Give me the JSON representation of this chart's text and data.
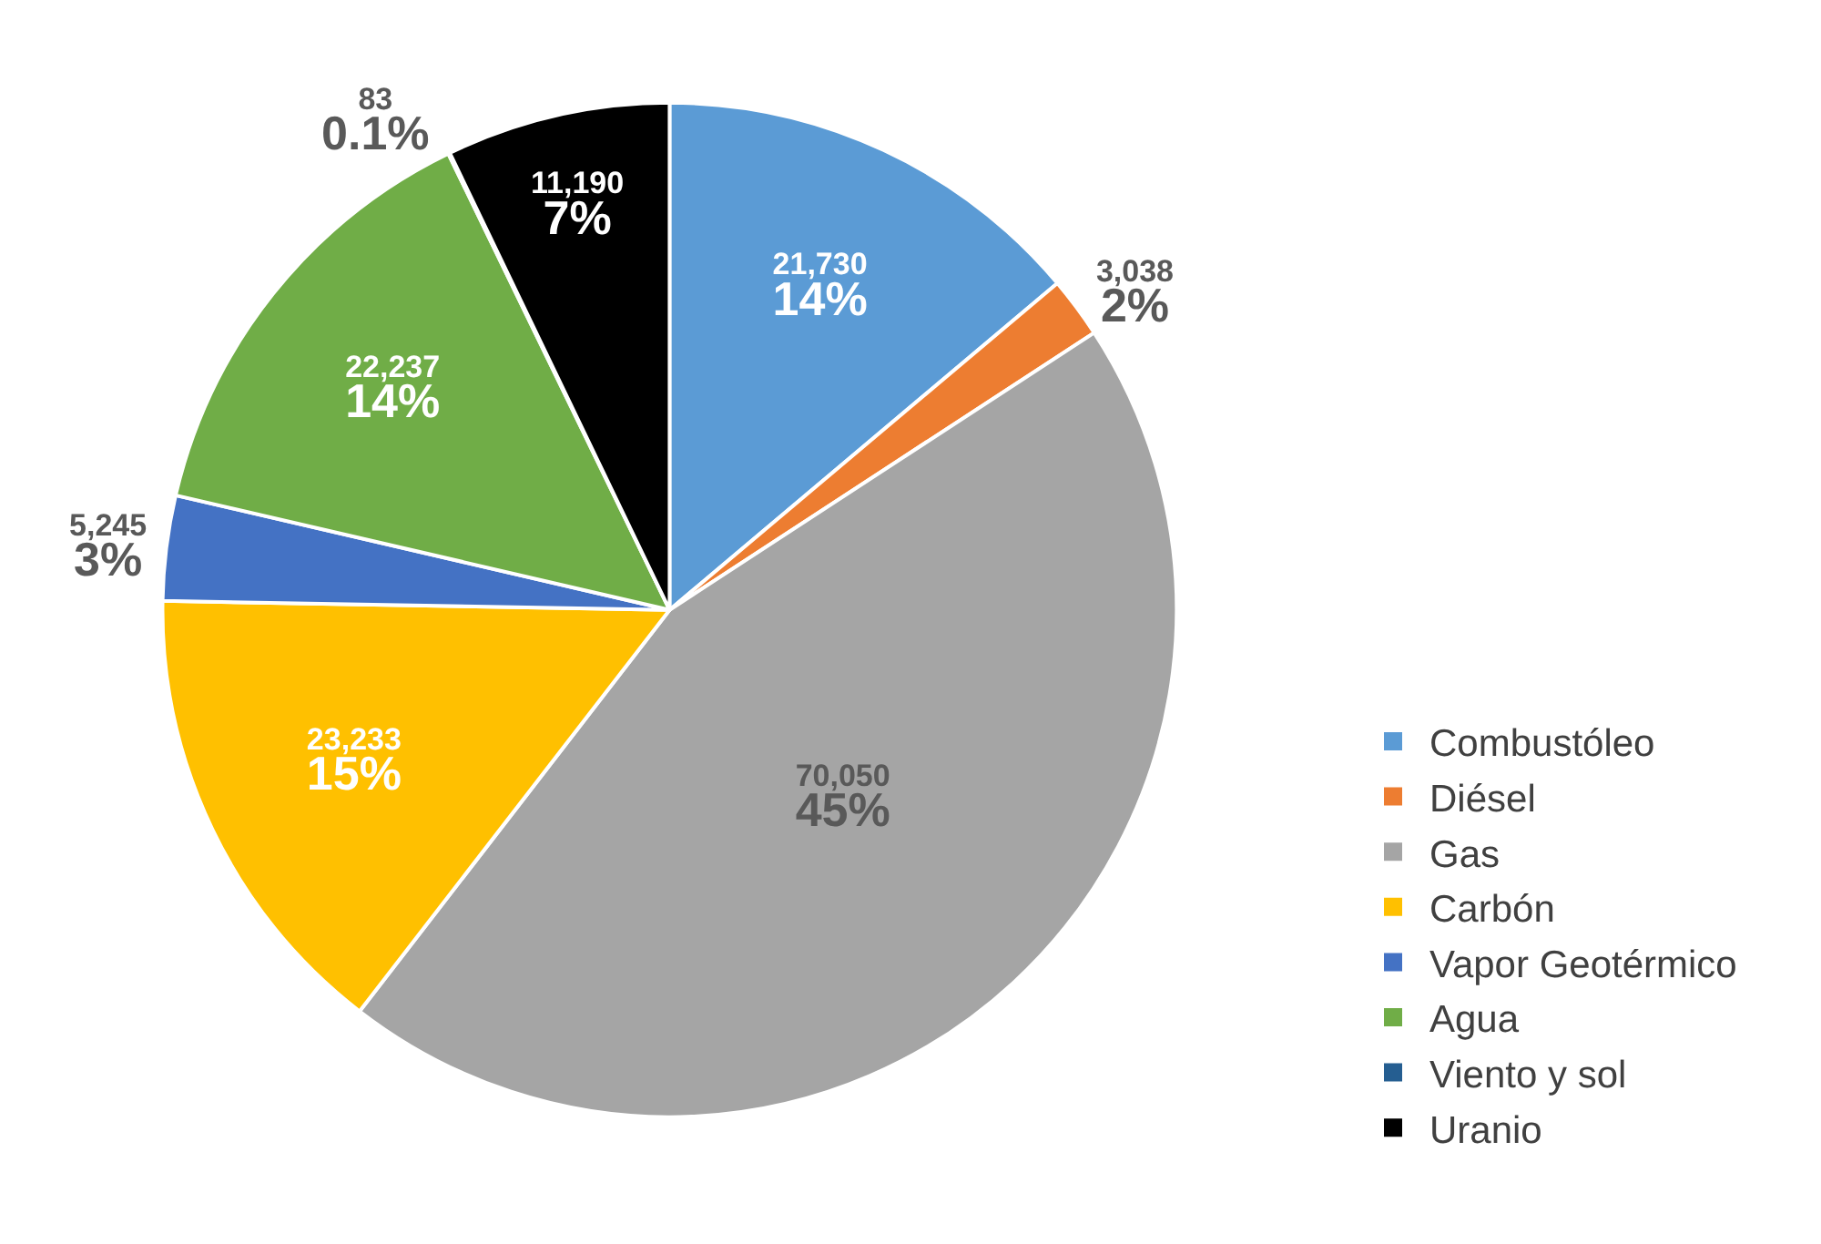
{
  "chart_data": {
    "type": "pie",
    "categories": [
      "Combustóleo",
      "Diésel",
      "Gas",
      "Carbón",
      "Vapor Geotérmico",
      "Agua",
      "Viento y sol",
      "Uranio"
    ],
    "values": [
      21730,
      3038,
      70050,
      23233,
      5245,
      22237,
      83,
      11190
    ],
    "colors": [
      "#5b9bd5",
      "#ed7d31",
      "#a5a5a5",
      "#ffc000",
      "#4472c4",
      "#70ad47",
      "#255e91",
      "#000000"
    ],
    "value_labels": [
      "21,730\n14%",
      "3,038\n2%",
      "70,050\n45%",
      "23,233\n15%",
      "5,245\n3%",
      "22,237\n14%",
      "83\n0.1%",
      "11,190\n7%"
    ],
    "legend": "right"
  }
}
